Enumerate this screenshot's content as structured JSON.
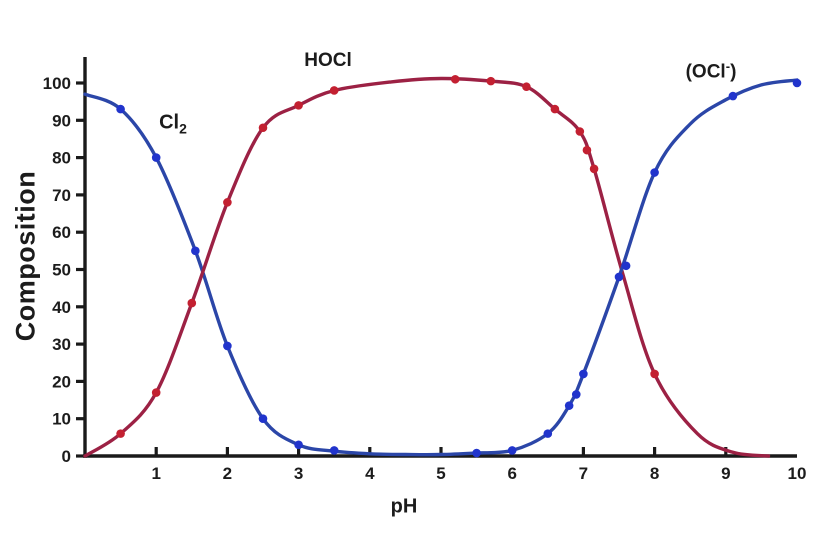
{
  "figure": {
    "background": "#ffffff",
    "ylabel": "Composition",
    "xlabel": "pH",
    "labels": {
      "hocl": "HOCl",
      "cl2_base": "Cl",
      "cl2_sub": "2",
      "ocl_open": "(OCl",
      "ocl_sup": "-",
      "ocl_close": ")"
    },
    "colors": {
      "axis": "#1a1a1a",
      "text": "#1c1c1c",
      "blue_line": "#2b46a8",
      "blue_marker": "#2134cc",
      "red_line": "#9c2144",
      "red_marker": "#c32031"
    }
  },
  "chart_data": {
    "type": "line",
    "title": "",
    "xlabel": "pH",
    "ylabel": "Composition",
    "xlim": [
      0,
      10
    ],
    "ylim": [
      0,
      100
    ],
    "grid": false,
    "legend": "inline curve labels (Cl2, HOCl, OCl-)",
    "x_ticks": [
      {
        "v": 1,
        "mark": true
      },
      {
        "v": 2,
        "mark": true
      },
      {
        "v": 3,
        "mark": true
      },
      {
        "v": 4,
        "mark": true
      },
      {
        "v": 5,
        "mark": true
      },
      {
        "v": 6,
        "mark": true
      },
      {
        "v": 7,
        "mark": true
      },
      {
        "v": 8,
        "mark": true
      },
      {
        "v": 9,
        "mark": true
      },
      {
        "v": 10,
        "mark": false
      }
    ],
    "y_ticks": [
      0,
      10,
      20,
      30,
      40,
      50,
      60,
      70,
      80,
      90,
      100
    ],
    "series": [
      {
        "name": "Cl2",
        "slug": "cl2",
        "line_color": "#2b46a8",
        "marker_color": "#2134cc",
        "markers": [
          [
            0.5,
            93
          ],
          [
            1,
            80
          ],
          [
            1.55,
            55
          ],
          [
            2,
            29.5
          ],
          [
            2.5,
            10
          ],
          [
            3,
            3
          ],
          [
            3.5,
            1.5
          ],
          [
            5.5,
            0.8
          ]
        ],
        "curve": [
          [
            0,
            97
          ],
          [
            0.5,
            93
          ],
          [
            1,
            80
          ],
          [
            1.55,
            55
          ],
          [
            2,
            29.5
          ],
          [
            2.5,
            10
          ],
          [
            3,
            3
          ],
          [
            3.5,
            1.3
          ],
          [
            4,
            0.6
          ],
          [
            4.5,
            0.4
          ],
          [
            5,
            0.4
          ],
          [
            5.5,
            0.8
          ]
        ]
      },
      {
        "name": "HOCl",
        "slug": "hocl",
        "line_color": "#9c2144",
        "marker_color": "#c32031",
        "markers": [
          [
            0.5,
            6
          ],
          [
            1,
            17
          ],
          [
            1.5,
            41
          ],
          [
            2,
            68
          ],
          [
            2.5,
            88
          ],
          [
            3,
            94
          ],
          [
            3.5,
            98
          ],
          [
            5.2,
            101
          ],
          [
            5.7,
            100.5
          ],
          [
            6.2,
            99
          ],
          [
            6.6,
            93
          ],
          [
            6.95,
            87
          ],
          [
            7.05,
            82
          ],
          [
            7.15,
            77
          ],
          [
            8,
            22
          ]
        ],
        "curve": [
          [
            0,
            0
          ],
          [
            0.5,
            6
          ],
          [
            1,
            17
          ],
          [
            1.5,
            41
          ],
          [
            2,
            68
          ],
          [
            2.5,
            88
          ],
          [
            3,
            94
          ],
          [
            3.5,
            98
          ],
          [
            4.3,
            100.3
          ],
          [
            5,
            101.2
          ],
          [
            5.7,
            100.5
          ],
          [
            6.2,
            99
          ],
          [
            6.6,
            93
          ],
          [
            6.95,
            87
          ],
          [
            7.15,
            77
          ],
          [
            7.55,
            49
          ],
          [
            8,
            22
          ],
          [
            8.6,
            6
          ],
          [
            9.1,
            1
          ],
          [
            9.6,
            0
          ]
        ]
      },
      {
        "name": "OCl-",
        "slug": "ocl",
        "line_color": "#2b46a8",
        "marker_color": "#2134cc",
        "markers": [
          [
            6,
            1.5
          ],
          [
            6.5,
            6
          ],
          [
            6.8,
            13.5
          ],
          [
            6.9,
            16.5
          ],
          [
            7,
            22
          ],
          [
            7.5,
            48
          ],
          [
            7.6,
            51
          ],
          [
            8,
            76
          ],
          [
            9.1,
            96.5
          ],
          [
            10,
            100
          ]
        ],
        "curve": [
          [
            5.5,
            0.8
          ],
          [
            6,
            1.5
          ],
          [
            6.5,
            6
          ],
          [
            6.8,
            13.5
          ],
          [
            7,
            22
          ],
          [
            7.5,
            48
          ],
          [
            8,
            76
          ],
          [
            8.5,
            89
          ],
          [
            9,
            95.5
          ],
          [
            9.5,
            99.5
          ],
          [
            10,
            100.8
          ]
        ]
      }
    ]
  }
}
